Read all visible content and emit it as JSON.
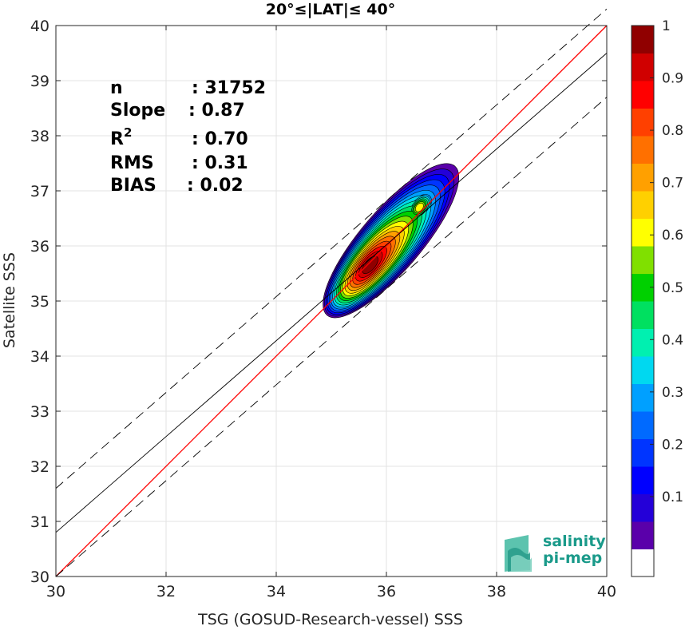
{
  "chart_data": {
    "type": "heatmap",
    "title": "20°≤|LAT|≤ 40°",
    "xlabel": "TSG (GOSUD-Research-vessel) SSS",
    "ylabel": "Satellite SSS",
    "xlim": [
      30,
      40
    ],
    "ylim": [
      30,
      40
    ],
    "xticks": [
      "30",
      "32",
      "34",
      "36",
      "38",
      "40"
    ],
    "yticks": [
      "30",
      "31",
      "32",
      "33",
      "34",
      "35",
      "36",
      "37",
      "38",
      "39",
      "40"
    ],
    "grid": true,
    "stats": [
      {
        "label": "n",
        "value": ": 31752"
      },
      {
        "label": "Slope",
        "value": ": 0.87"
      },
      {
        "label": "R",
        "sup": "2",
        "value": ": 0.70"
      },
      {
        "label": "RMS",
        "value": ": 0.31"
      },
      {
        "label": "BIAS",
        "value": ": 0.02"
      }
    ],
    "lines": {
      "one_to_one": {
        "slope": 1,
        "intercept": 0,
        "color": "#ff0000"
      },
      "fit": {
        "slope": 0.87,
        "x0": 30,
        "y0": 30.8,
        "color": "#000000"
      },
      "bounds_offset": 0.8
    },
    "density_center": {
      "x": 35.7,
      "y": 35.65
    },
    "secondary_mode": {
      "x": 36.6,
      "y": 36.7
    },
    "colorbar": {
      "ticks": [
        "0.1",
        "0.2",
        "0.3",
        "0.4",
        "0.5",
        "0.6",
        "0.7",
        "0.8",
        "0.9",
        "1"
      ],
      "colors": [
        "#ffffff",
        "#5a00aa",
        "#2400d8",
        "#0000ff",
        "#0035ff",
        "#006aff",
        "#00a0ff",
        "#00d8f0",
        "#00f0b0",
        "#00e060",
        "#00d000",
        "#80e000",
        "#ffff00",
        "#ffd000",
        "#ffa000",
        "#ff7000",
        "#ff4000",
        "#ff0000",
        "#d00000",
        "#900000"
      ]
    },
    "logo": {
      "line1": "salinity",
      "line2": "pi-mep"
    }
  }
}
